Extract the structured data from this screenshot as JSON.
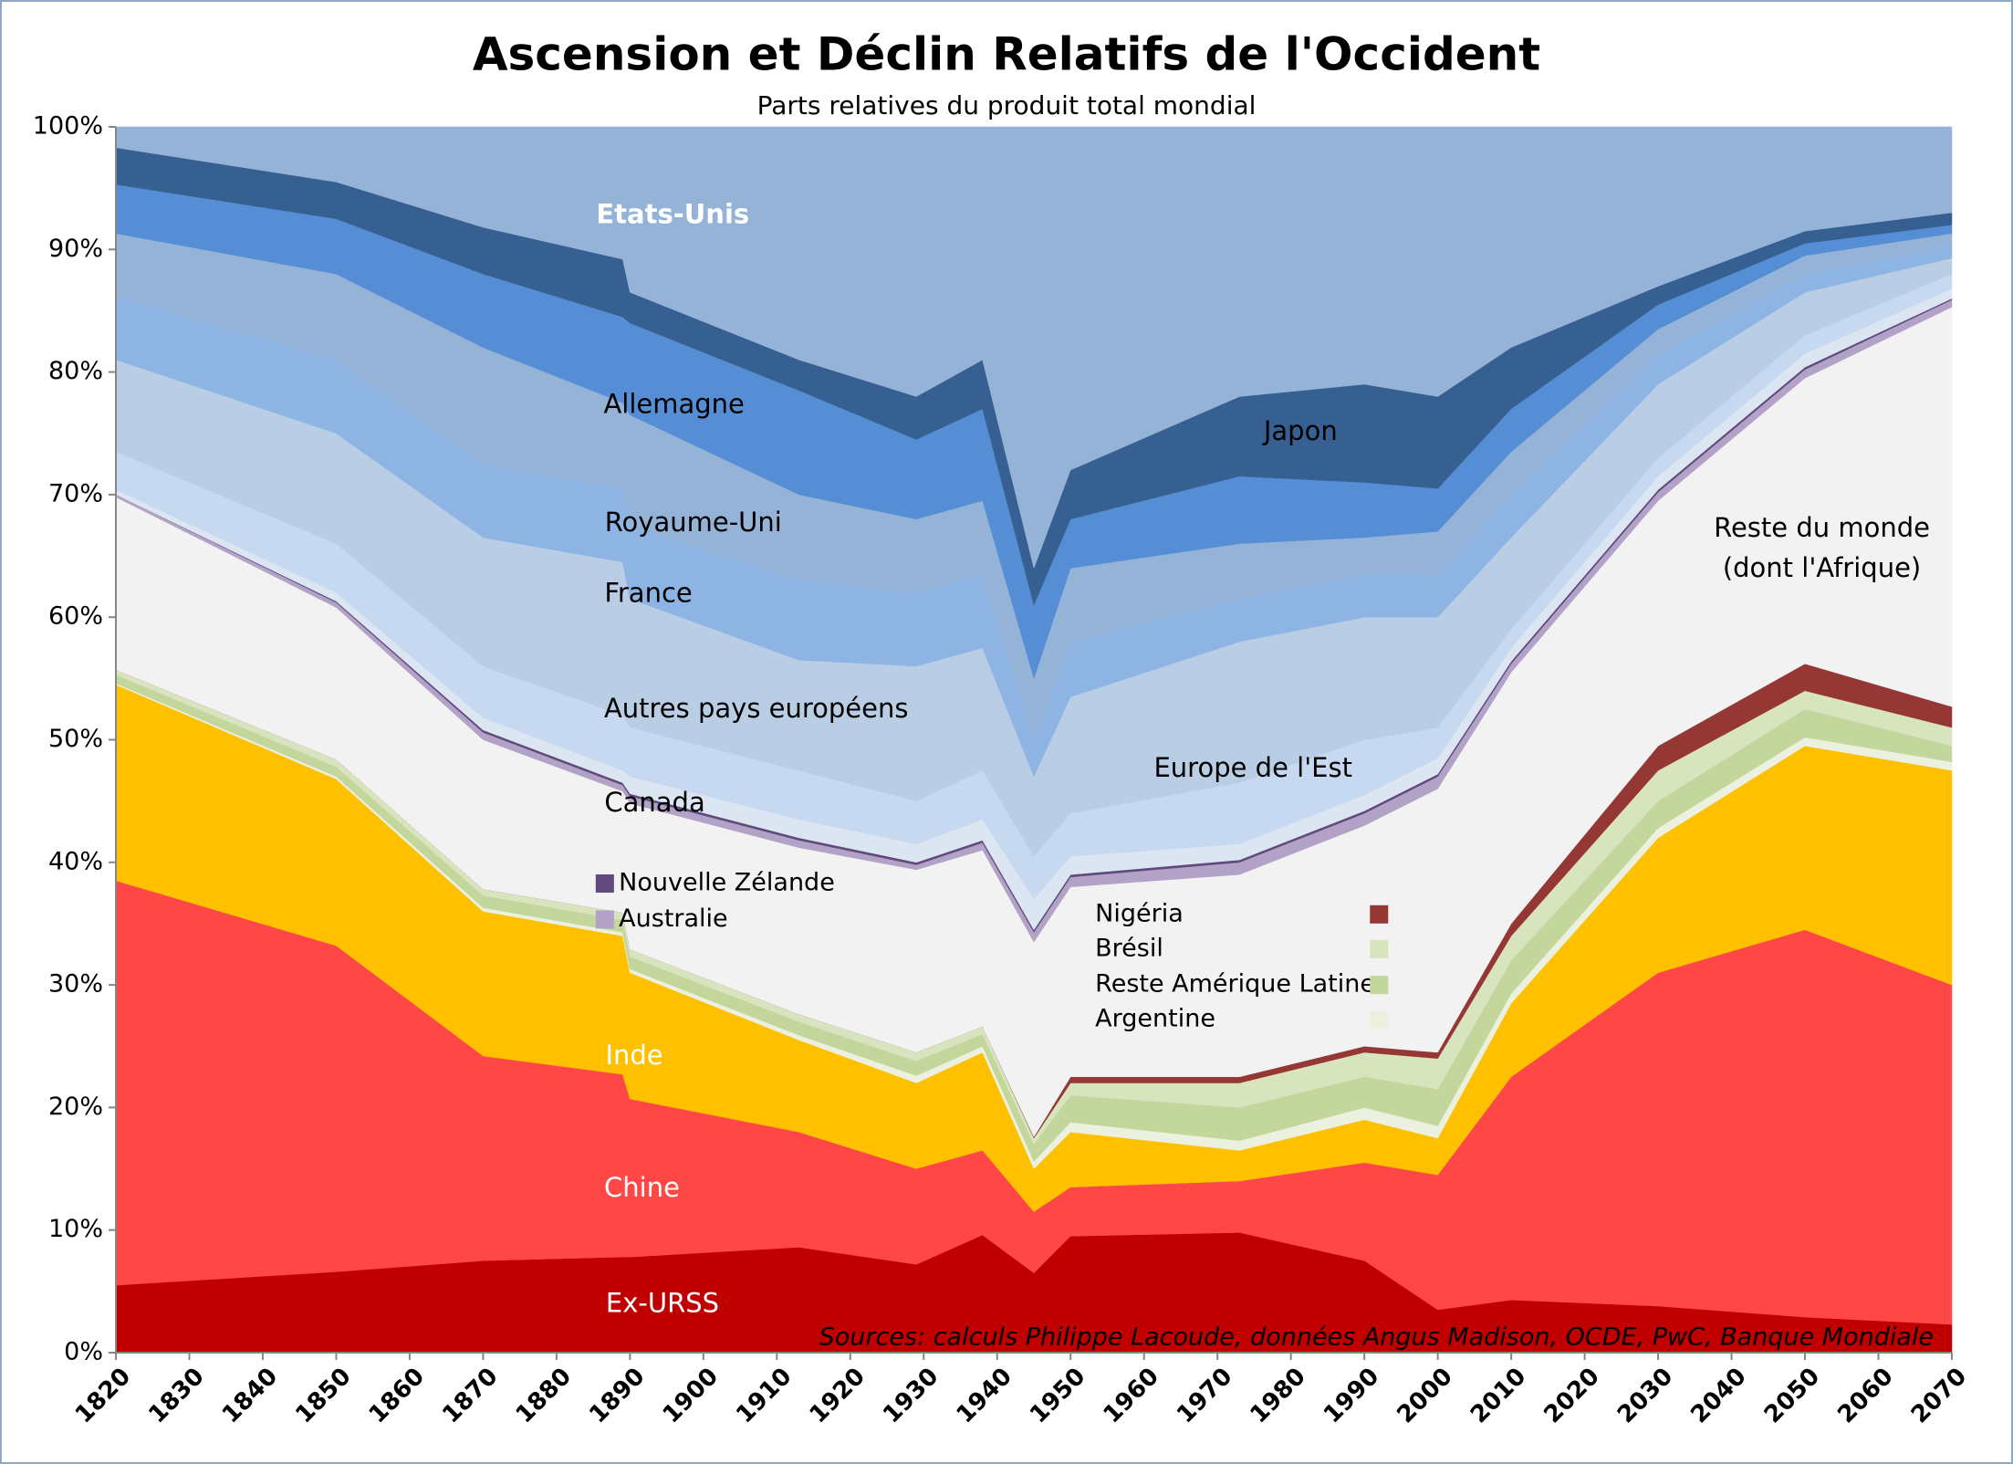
{
  "chart_data": {
    "type": "stacked_area",
    "title": "Ascension et Déclin Relatifs de l'Occident",
    "subtitle": "Parts relatives du produit total mondial",
    "annotation": "Sources: calculs Philippe Lacoude, données Angus Madison, OCDE, PwC, Banque Mondiale",
    "x": [
      1820,
      1850,
      1870,
      1889,
      1890,
      1913,
      1929,
      1938,
      1945,
      1950,
      1973,
      1990,
      2000,
      2010,
      2030,
      2050,
      2070
    ],
    "xlim": [
      1820,
      2070
    ],
    "xticks": [
      1820,
      1830,
      1840,
      1850,
      1860,
      1870,
      1880,
      1890,
      1900,
      1910,
      1920,
      1930,
      1940,
      1950,
      1960,
      1970,
      1980,
      1990,
      2000,
      2010,
      2020,
      2030,
      2040,
      2050,
      2060,
      2070
    ],
    "ylim": [
      0,
      100
    ],
    "yticks": [
      {
        "value": 0,
        "label": "0%"
      },
      {
        "value": 10,
        "label": "10%"
      },
      {
        "value": 20,
        "label": "20%"
      },
      {
        "value": 30,
        "label": "30%"
      },
      {
        "value": 40,
        "label": "40%"
      },
      {
        "value": 50,
        "label": "50%"
      },
      {
        "value": 60,
        "label": "60%"
      },
      {
        "value": 70,
        "label": "70%"
      },
      {
        "value": 80,
        "label": "80%"
      },
      {
        "value": 90,
        "label": "90%"
      },
      {
        "value": 100,
        "label": "100%"
      }
    ],
    "grid": false,
    "series": [
      {
        "name": "Ex-URSS",
        "color": "#c00000",
        "values": [
          5.5,
          6.6,
          7.5,
          7.8,
          7.8,
          8.6,
          7.2,
          9.6,
          6.5,
          9.5,
          9.8,
          7.5,
          3.5,
          4.3,
          3.8,
          2.9,
          2.3
        ]
      },
      {
        "name": "Chine",
        "color": "#ff4747",
        "values": [
          33,
          26.6,
          16.7,
          14.9,
          12.9,
          9.4,
          7.8,
          6.9,
          5.0,
          4.0,
          4.2,
          8.0,
          11.0,
          18.2,
          27.2,
          31.6,
          27.7
        ]
      },
      {
        "name": "Inde",
        "color": "#ffc000",
        "values": [
          16,
          13.6,
          11.8,
          11.3,
          10.3,
          7.5,
          7,
          8,
          3.5,
          4.5,
          2.5,
          3.5,
          3,
          6,
          11,
          15,
          17.5
        ]
      },
      {
        "name": "Argentine",
        "color": "#ebf1de",
        "values": [
          0.1,
          0.2,
          0.3,
          0.3,
          0.3,
          0.4,
          0.6,
          0.5,
          0.6,
          0.8,
          0.8,
          1.0,
          1.0,
          0.8,
          0.8,
          0.7,
          0.7
        ]
      },
      {
        "name": "Reste Amérique Latine",
        "color": "#c3d69b",
        "values": [
          0.7,
          0.8,
          1.0,
          1.0,
          1.0,
          1.1,
          1.2,
          1.0,
          1.4,
          2.2,
          2.7,
          2.5,
          3.0,
          2.7,
          2.2,
          2.3,
          1.3
        ]
      },
      {
        "name": "Brésil",
        "color": "#d7e4bd",
        "values": [
          0.4,
          0.6,
          0.5,
          0.6,
          0.6,
          0.6,
          0.7,
          0.6,
          0.5,
          1.0,
          2.0,
          2.0,
          2.5,
          2.0,
          2.5,
          1.5,
          1.5
        ]
      },
      {
        "name": "Nigéria",
        "color": "#953735",
        "values": [
          0,
          0,
          0,
          0,
          0,
          0,
          0,
          0,
          0.1,
          0.5,
          0.5,
          0.5,
          0.5,
          1.0,
          2.0,
          2.2,
          1.7
        ]
      },
      {
        "name": "Reste du monde (dont l'Afrique)",
        "color": "#f2f2f2",
        "values": [
          14.1,
          12.4,
          12.2,
          9.9,
          11.9,
          13.6,
          14.9,
          14.4,
          15.9,
          15.5,
          16.5,
          18,
          21.5,
          20.5,
          20,
          23.3,
          32.6
        ]
      },
      {
        "name": "Australie",
        "color": "#b3a2c7",
        "values": [
          0.2,
          0.4,
          0.6,
          0.5,
          0.6,
          0.6,
          0.4,
          0.6,
          0.8,
          0.8,
          1.0,
          1.0,
          1.0,
          0.7,
          0.7,
          0.7,
          0.6
        ]
      },
      {
        "name": "Nouvelle Zélande",
        "color": "#604a7b",
        "values": [
          0,
          0.1,
          0.2,
          0.2,
          0.2,
          0.2,
          0.2,
          0.2,
          0.2,
          0.2,
          0.2,
          0.2,
          0.2,
          0.2,
          0.2,
          0.2,
          0.1
        ]
      },
      {
        "name": "Canada",
        "color": "#dce6f2",
        "values": [
          0.4,
          0.7,
          1.0,
          1.0,
          1.4,
          1.5,
          1.5,
          1.7,
          2.5,
          1.5,
          1.3,
          1.3,
          1.3,
          1.1,
          1.1,
          1.1,
          0.8
        ]
      },
      {
        "name": "Europe de l'Est",
        "color": "#c6d9f1",
        "values": [
          3.1,
          4.0,
          4.2,
          4.5,
          4.0,
          4.0,
          3.5,
          4.0,
          3.5,
          3.5,
          5.0,
          4.5,
          2.5,
          1.5,
          1.5,
          1.5,
          1.2
        ]
      },
      {
        "name": "Autres pays européens",
        "color": "#b9cde5",
        "values": [
          7.5,
          9.0,
          10.5,
          12.5,
          10.5,
          9.0,
          11.0,
          10.0,
          6.5,
          9.5,
          11.5,
          10.0,
          9.0,
          7.5,
          6.0,
          3.5,
          1.3
        ]
      },
      {
        "name": "France",
        "color": "#8eb4e3",
        "values": [
          5.2,
          6.0,
          6.0,
          6.0,
          6.0,
          6.5,
          6.0,
          6.0,
          3.0,
          4.5,
          3.5,
          3.5,
          3.5,
          3.5,
          2.5,
          1.5,
          1.0
        ]
      },
      {
        "name": "Royaume-Uni",
        "color": "#95b3d7",
        "values": [
          5.1,
          7.0,
          9.5,
          7.0,
          9.0,
          7.0,
          6.0,
          6.0,
          5.0,
          6.0,
          4.5,
          3.0,
          3.5,
          3.5,
          2.0,
          1.5,
          1.0
        ]
      },
      {
        "name": "Allemagne",
        "color": "#558ed5",
        "values": [
          4.0,
          4.5,
          6.0,
          7.0,
          7.5,
          8.5,
          6.5,
          7.5,
          6.0,
          4.0,
          5.5,
          4.5,
          3.5,
          3.5,
          2.0,
          1.0,
          0.7
        ]
      },
      {
        "name": "Japon",
        "color": "#376092",
        "values": [
          3.0,
          3.0,
          3.8,
          4.7,
          2.5,
          2.5,
          3.5,
          4.0,
          3.0,
          4.0,
          6.5,
          8.0,
          7.5,
          5.0,
          1.5,
          1.0,
          1.0
        ]
      },
      {
        "name": "Etats-Unis",
        "color": "#95b3d7",
        "values": [
          1.7,
          4.5,
          8.2,
          10.8,
          13.5,
          19.0,
          22.0,
          19.0,
          36.0,
          28.0,
          22.0,
          21.0,
          22.0,
          18.0,
          13.0,
          8.5,
          7.0
        ]
      }
    ]
  }
}
